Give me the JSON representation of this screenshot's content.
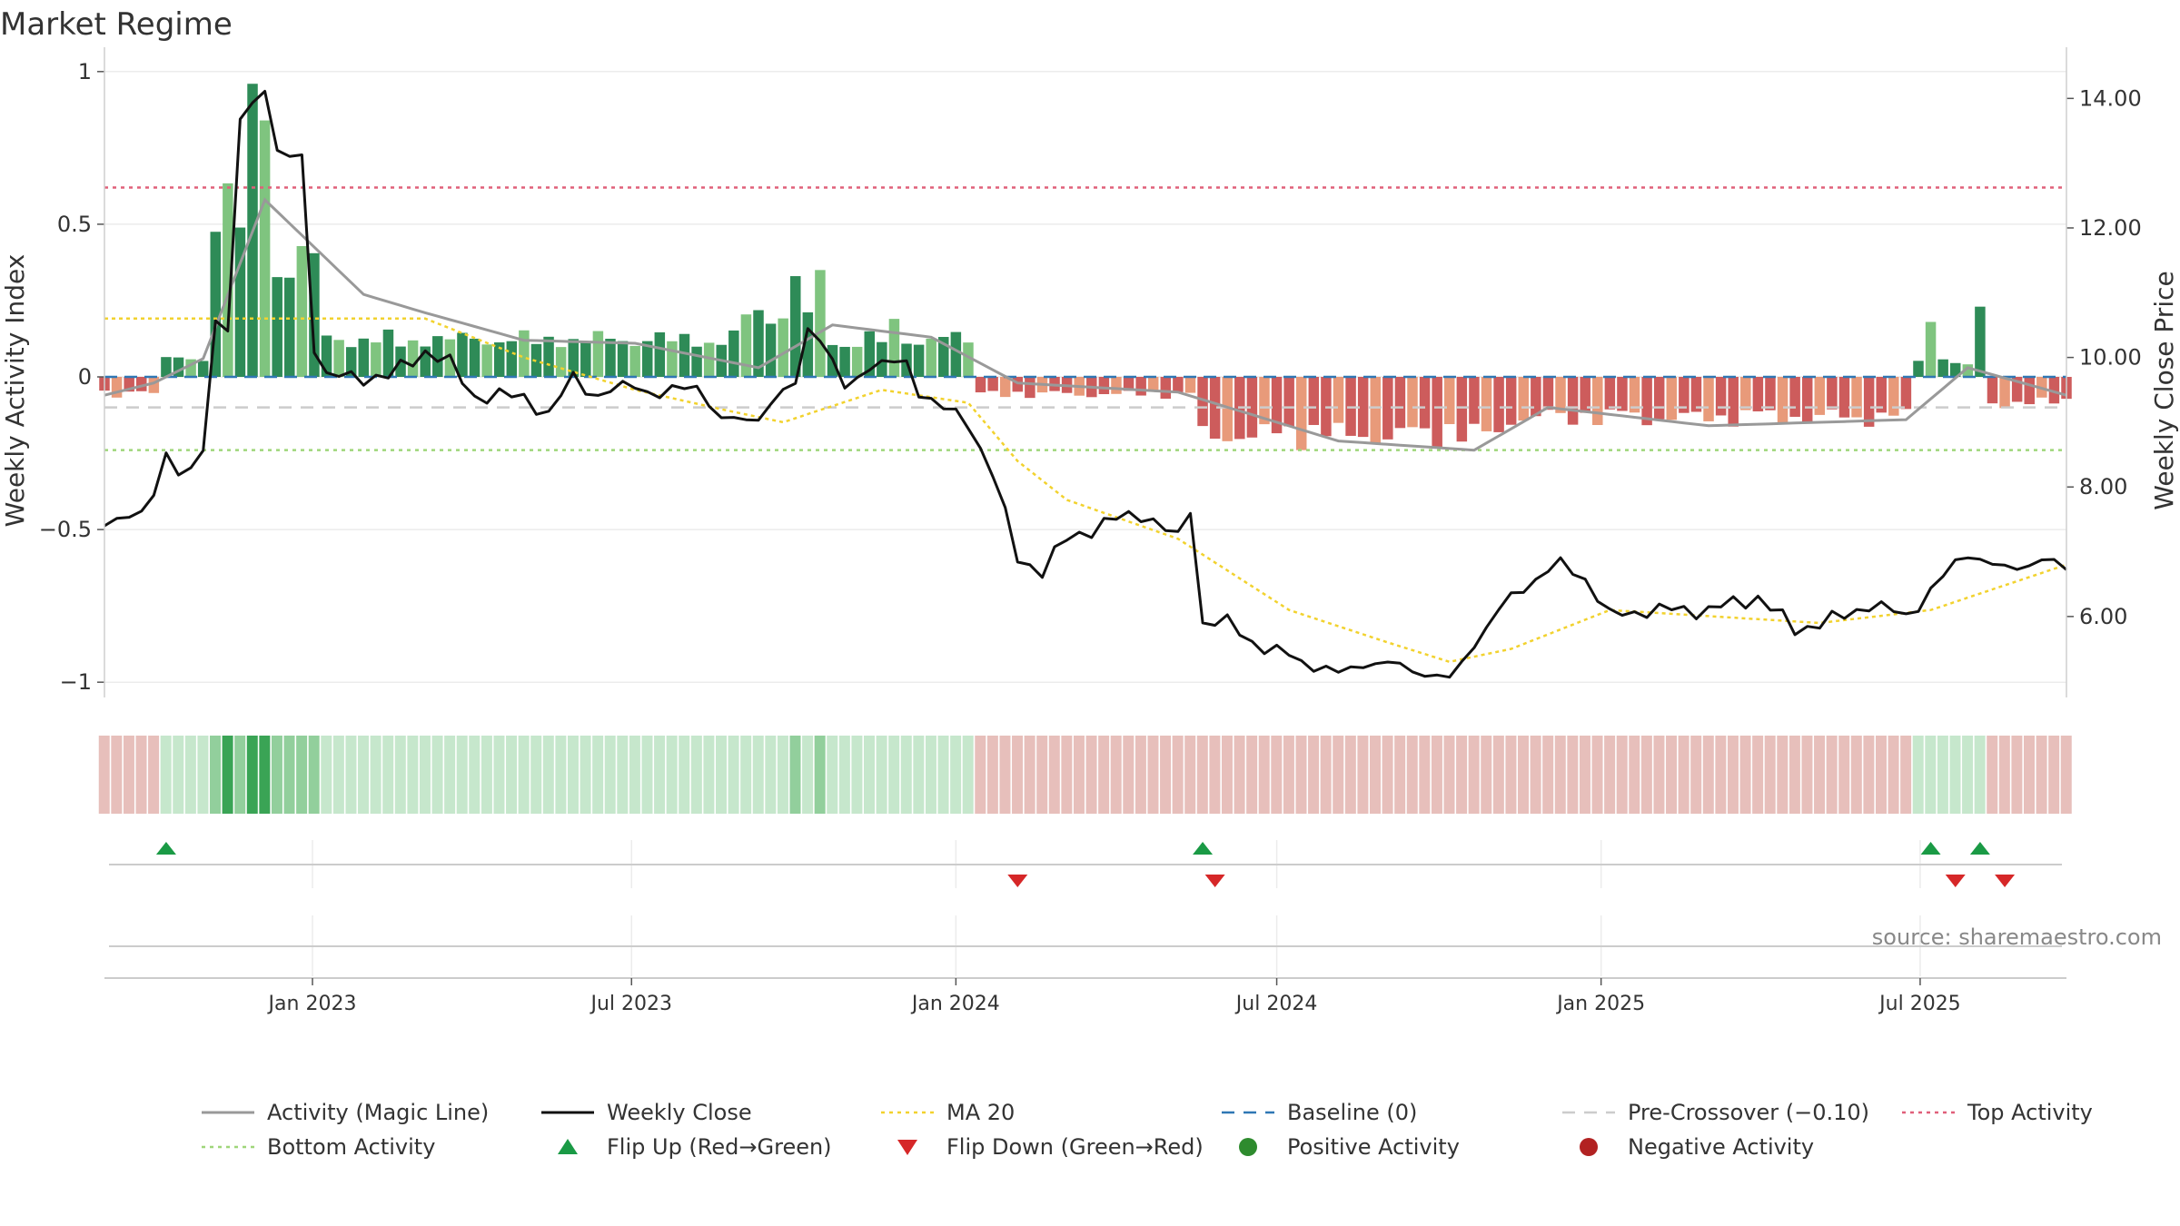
{
  "chart_data": {
    "type": "bar",
    "title": "Market Regime",
    "ylabel_left": "Weekly Activity Index",
    "ylabel_right": "Weekly Close Price",
    "source": "source: sharemaestro.com",
    "left_axis": {
      "ylim": [
        -1.05,
        1.05
      ],
      "ticks": [
        1,
        0.5,
        0,
        -0.5,
        -1
      ],
      "tick_labels": [
        "1",
        "0.5",
        "0",
        "−0.5",
        "−1"
      ]
    },
    "right_axis": {
      "ylim": [
        4.75,
        14.65
      ],
      "ticks": [
        14,
        12,
        10,
        8,
        6
      ],
      "tick_labels": [
        "14.00",
        "12.00",
        "10.00",
        "8.00",
        "6.00"
      ]
    },
    "x_axis": {
      "start": "2022-09-05",
      "end": "2025-09-22",
      "tick_dates": [
        "2023-01-01",
        "2023-07-01",
        "2024-01-01",
        "2024-07-01",
        "2025-01-01",
        "2025-07-01"
      ],
      "tick_labels": [
        "Jan 2023",
        "Jul 2023",
        "Jan 2024",
        "Jul 2024",
        "Jan 2025",
        "Jul 2025"
      ]
    },
    "levels": {
      "top_activity": 0.62,
      "bottom_activity": -0.24,
      "pre_crossover": -0.1,
      "baseline": 0
    },
    "weekly_close_keypoints": [
      [
        "2022-09-05",
        7.4
      ],
      [
        "2022-09-19",
        7.5
      ],
      [
        "2022-10-03",
        7.9
      ],
      [
        "2022-10-10",
        8.5
      ],
      [
        "2022-10-17",
        8.1
      ],
      [
        "2022-10-31",
        8.6
      ],
      [
        "2022-11-07",
        10.6
      ],
      [
        "2022-11-14",
        10.3
      ],
      [
        "2022-11-21",
        13.7
      ],
      [
        "2022-12-05",
        14.2
      ],
      [
        "2022-12-12",
        13.1
      ],
      [
        "2022-12-26",
        13.1
      ],
      [
        "2023-01-02",
        10.2
      ],
      [
        "2023-01-09",
        9.7
      ],
      [
        "2023-02-13",
        9.7
      ],
      [
        "2023-03-06",
        10.1
      ],
      [
        "2023-03-20",
        9.9
      ],
      [
        "2023-04-03",
        9.4
      ],
      [
        "2023-05-01",
        9.4
      ],
      [
        "2023-05-15",
        9.1
      ],
      [
        "2023-05-29",
        9.7
      ],
      [
        "2023-06-12",
        9.4
      ],
      [
        "2023-07-03",
        9.6
      ],
      [
        "2023-07-17",
        9.4
      ],
      [
        "2023-08-07",
        9.6
      ],
      [
        "2023-08-21",
        9.0
      ],
      [
        "2023-09-11",
        9.1
      ],
      [
        "2023-10-02",
        9.6
      ],
      [
        "2023-10-09",
        10.5
      ],
      [
        "2023-10-16",
        10.3
      ],
      [
        "2023-10-30",
        9.5
      ],
      [
        "2023-11-13",
        9.9
      ],
      [
        "2023-12-04",
        9.9
      ],
      [
        "2023-12-11",
        9.5
      ],
      [
        "2023-12-25",
        9.2
      ],
      [
        "2024-01-08",
        9.0
      ],
      [
        "2024-01-22",
        8.2
      ],
      [
        "2024-02-05",
        6.9
      ],
      [
        "2024-02-19",
        6.7
      ],
      [
        "2024-03-04",
        7.2
      ],
      [
        "2024-04-01",
        7.5
      ],
      [
        "2024-04-15",
        7.6
      ],
      [
        "2024-05-06",
        7.2
      ],
      [
        "2024-05-13",
        7.7
      ],
      [
        "2024-05-20",
        5.9
      ],
      [
        "2024-06-03",
        5.9
      ],
      [
        "2024-06-24",
        5.5
      ],
      [
        "2024-07-08",
        5.4
      ],
      [
        "2024-08-05",
        5.1
      ],
      [
        "2024-08-19",
        5.3
      ],
      [
        "2024-09-16",
        5.2
      ],
      [
        "2024-10-07",
        5.0
      ],
      [
        "2024-10-21",
        5.6
      ],
      [
        "2024-11-11",
        6.3
      ],
      [
        "2024-11-25",
        6.6
      ],
      [
        "2024-12-09",
        6.8
      ],
      [
        "2024-12-23",
        6.6
      ],
      [
        "2025-01-06",
        6.0
      ],
      [
        "2025-01-27",
        6.1
      ],
      [
        "2025-03-03",
        6.1
      ],
      [
        "2025-03-31",
        6.3
      ],
      [
        "2025-04-21",
        5.8
      ],
      [
        "2025-05-19",
        6.0
      ],
      [
        "2025-06-02",
        6.2
      ],
      [
        "2025-06-23",
        6.0
      ],
      [
        "2025-07-14",
        6.6
      ],
      [
        "2025-07-28",
        7.0
      ],
      [
        "2025-08-18",
        6.7
      ],
      [
        "2025-09-08",
        6.9
      ],
      [
        "2025-09-22",
        6.7
      ]
    ],
    "ma20_keypoints": [
      [
        "2022-09-05",
        10.6
      ],
      [
        "2023-03-06",
        10.6
      ],
      [
        "2023-05-01",
        10.0
      ],
      [
        "2023-07-03",
        9.5
      ],
      [
        "2023-08-21",
        9.2
      ],
      [
        "2023-09-25",
        9.0
      ],
      [
        "2023-11-20",
        9.5
      ],
      [
        "2024-01-08",
        9.3
      ],
      [
        "2024-02-05",
        8.4
      ],
      [
        "2024-03-04",
        7.8
      ],
      [
        "2024-05-06",
        7.2
      ],
      [
        "2024-07-08",
        6.1
      ],
      [
        "2024-09-02",
        5.6
      ],
      [
        "2024-10-07",
        5.3
      ],
      [
        "2024-11-11",
        5.5
      ],
      [
        "2025-01-06",
        6.1
      ],
      [
        "2025-05-05",
        5.9
      ],
      [
        "2025-07-07",
        6.1
      ],
      [
        "2025-09-22",
        6.8
      ]
    ],
    "activity_magic_keypoints": [
      [
        "2022-09-05",
        -0.06
      ],
      [
        "2022-10-03",
        -0.02
      ],
      [
        "2022-10-31",
        0.06
      ],
      [
        "2022-12-05",
        0.58
      ],
      [
        "2023-01-30",
        0.27
      ],
      [
        "2023-03-06",
        0.21
      ],
      [
        "2023-05-01",
        0.12
      ],
      [
        "2023-07-03",
        0.11
      ],
      [
        "2023-09-11",
        0.03
      ],
      [
        "2023-10-23",
        0.17
      ],
      [
        "2023-12-18",
        0.13
      ],
      [
        "2024-02-05",
        -0.02
      ],
      [
        "2024-05-06",
        -0.05
      ],
      [
        "2024-08-05",
        -0.21
      ],
      [
        "2024-10-21",
        -0.24
      ],
      [
        "2024-12-02",
        -0.1
      ],
      [
        "2025-03-03",
        -0.16
      ],
      [
        "2025-06-23",
        -0.14
      ],
      [
        "2025-07-28",
        0.03
      ],
      [
        "2025-09-22",
        -0.06
      ]
    ],
    "activity_bar_segments": [
      {
        "from": "2022-09-05",
        "to": "2022-10-10",
        "value": -0.06,
        "sign": "negative"
      },
      {
        "from": "2022-10-10",
        "to": "2022-11-07",
        "value": 0.06,
        "sign": "positive"
      },
      {
        "from": "2022-11-07",
        "to": "2022-11-28",
        "value": 0.6,
        "sign": "positive"
      },
      {
        "from": "2022-11-28",
        "to": "2022-12-12",
        "value": 0.92,
        "sign": "positive"
      },
      {
        "from": "2022-12-12",
        "to": "2023-01-09",
        "value": 0.4,
        "sign": "positive"
      },
      {
        "from": "2023-01-09",
        "to": "2023-09-04",
        "value": 0.13,
        "sign": "positive"
      },
      {
        "from": "2023-09-04",
        "to": "2023-10-23",
        "value": 0.22,
        "sign": "positive"
      },
      {
        "from": "2023-10-23",
        "to": "2024-01-15",
        "value": 0.13,
        "sign": "positive"
      },
      {
        "from": "2024-01-15",
        "to": "2024-05-20",
        "value": -0.06,
        "sign": "negative"
      },
      {
        "from": "2024-05-20",
        "to": "2024-11-11",
        "value": -0.2,
        "sign": "negative"
      },
      {
        "from": "2024-11-11",
        "to": "2025-06-30",
        "value": -0.14,
        "sign": "negative"
      },
      {
        "from": "2025-06-30",
        "to": "2025-08-11",
        "value": 0.05,
        "sign": "positive"
      },
      {
        "from": "2025-08-11",
        "to": "2025-09-22",
        "value": -0.09,
        "sign": "negative"
      }
    ],
    "activity_bar_spikes": [
      [
        "2022-11-28",
        0.96
      ],
      [
        "2022-12-05",
        0.84
      ],
      [
        "2023-10-02",
        0.33
      ],
      [
        "2023-10-16",
        0.35
      ],
      [
        "2023-11-27",
        0.19
      ],
      [
        "2025-07-07",
        0.18
      ],
      [
        "2025-08-04",
        0.23
      ]
    ],
    "flip_up_dates": [
      "2022-10-10",
      "2024-05-20",
      "2025-07-07",
      "2025-08-04"
    ],
    "flip_down_dates": [
      "2024-02-05",
      "2024-05-27",
      "2025-07-21",
      "2025-08-18"
    ],
    "legend": [
      {
        "label": "Activity (Magic Line)",
        "kind": "line",
        "color": "#999999"
      },
      {
        "label": "Weekly Close",
        "kind": "line",
        "color": "#111111"
      },
      {
        "label": "MA 20",
        "kind": "dotted",
        "color": "#f2d22e"
      },
      {
        "label": "Baseline (0)",
        "kind": "dashed",
        "color": "#2f77b4"
      },
      {
        "label": "Pre-Crossover (−0.10)",
        "kind": "dashed",
        "color": "#cccccc"
      },
      {
        "label": "Top Activity",
        "kind": "dotted",
        "color": "#e0607a"
      },
      {
        "label": "Bottom Activity",
        "kind": "dotted",
        "color": "#9fd67a"
      },
      {
        "label": "Flip Up (Red→Green)",
        "kind": "triangle-up",
        "color": "#1a9a45"
      },
      {
        "label": "Flip Down (Green→Red)",
        "kind": "triangle-down",
        "color": "#d62728"
      },
      {
        "label": "Positive Activity",
        "kind": "dot",
        "color": "#2e8b2e"
      },
      {
        "label": "Negative Activity",
        "kind": "dot",
        "color": "#b22222"
      }
    ],
    "colors": {
      "pos_dark": "#2e8b57",
      "pos_light": "#7fc47f",
      "neg_dark": "#cd5c5c",
      "neg_light": "#e89a7a",
      "strip_pos": "#c6e7cc",
      "strip_pos_strong": "#3aa455",
      "strip_neg": "#e7bfbb"
    }
  }
}
